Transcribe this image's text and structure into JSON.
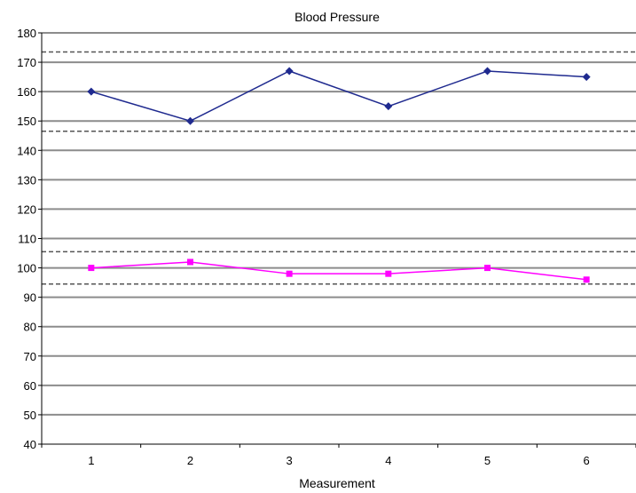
{
  "chart_data": {
    "type": "line",
    "title": "Blood Pressure",
    "xlabel": "Measurement",
    "ylabel": "",
    "categories": [
      "1",
      "2",
      "3",
      "4",
      "5",
      "6"
    ],
    "ylim": [
      40,
      180
    ],
    "yticks": [
      40,
      50,
      60,
      70,
      80,
      90,
      100,
      110,
      120,
      130,
      140,
      150,
      160,
      170,
      180
    ],
    "grid": true,
    "legend": "none",
    "series": [
      {
        "values": [
          160,
          150,
          167,
          155,
          167,
          165
        ],
        "color": "#1f2a8f",
        "marker": "diamond"
      },
      {
        "values": [
          100,
          102,
          98,
          98,
          100,
          96
        ],
        "color": "#ff00ff",
        "marker": "square"
      }
    ],
    "reference_lines": [
      {
        "y": 173.5,
        "style": "dashed"
      },
      {
        "y": 146.5,
        "style": "dashed"
      },
      {
        "y": 105.5,
        "style": "dashed"
      },
      {
        "y": 94.5,
        "style": "dashed"
      }
    ]
  }
}
